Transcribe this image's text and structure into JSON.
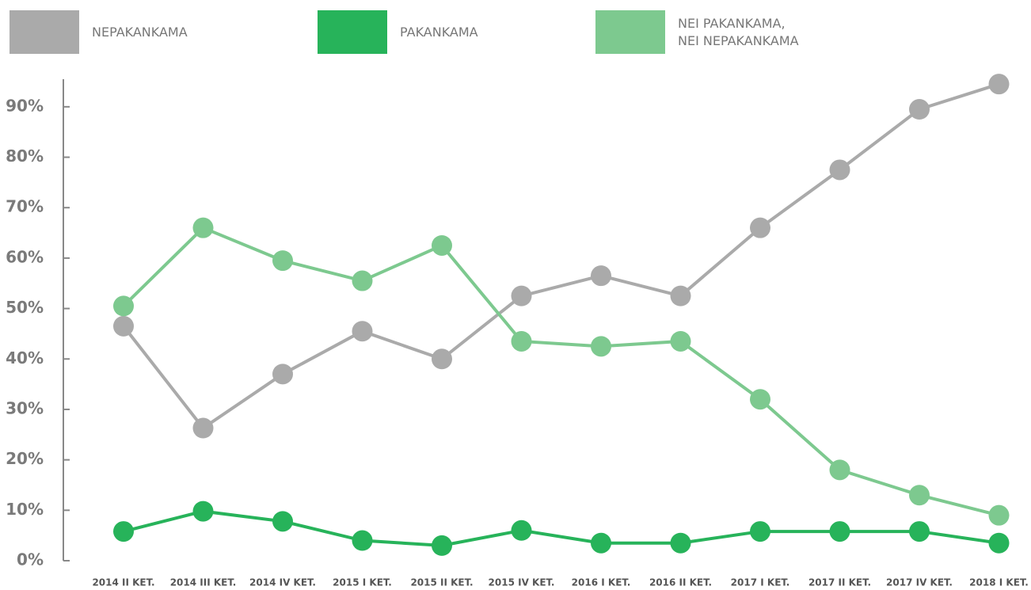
{
  "chart_data": {
    "type": "line",
    "categories": [
      "2014 II KET.",
      "2014 III KET.",
      "2014 IV KET.",
      "2015 I KET.",
      "2015 II KET.",
      "2015 IV KET.",
      "2016 I KET.",
      "2016 II KET.",
      "2017 I KET.",
      "2017 II KET.",
      "2017 IV KET.",
      "2018 I KET."
    ],
    "series": [
      {
        "name": "NEPAKANKAMA",
        "color": "#aaaaaa",
        "values": [
          46.5,
          26.3,
          37,
          45.5,
          40,
          52.5,
          56.5,
          52.5,
          66,
          77.5,
          89.5,
          94.5
        ]
      },
      {
        "name": "PAKANKAMA",
        "color": "#27b35a",
        "values": [
          5.8,
          9.8,
          7.8,
          4,
          3,
          6,
          3.5,
          3.5,
          5.8,
          5.8,
          5.8,
          3.5
        ]
      },
      {
        "name": "NEI PAKANKAMA,\nNEI NEPAKANKAMA",
        "color": "#7dc98f",
        "values": [
          50.5,
          66,
          59.5,
          55.5,
          62.5,
          43.5,
          42.5,
          43.5,
          32,
          18,
          13,
          9
        ]
      }
    ],
    "ylim": [
      0,
      95
    ],
    "yticks": [
      {
        "value": 0,
        "label": "0%"
      },
      {
        "value": 10,
        "label": "10%"
      },
      {
        "value": 20,
        "label": "20%"
      },
      {
        "value": 30,
        "label": "30%"
      },
      {
        "value": 40,
        "label": "40%"
      },
      {
        "value": 50,
        "label": "50%"
      },
      {
        "value": 60,
        "label": "60%"
      },
      {
        "value": 70,
        "label": "70%"
      },
      {
        "value": 80,
        "label": "80%"
      },
      {
        "value": 90,
        "label": "90%"
      }
    ],
    "grid": false
  }
}
